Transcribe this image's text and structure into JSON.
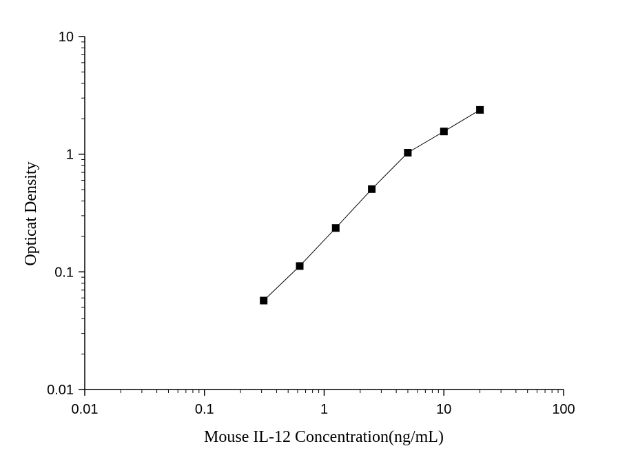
{
  "chart_data": {
    "type": "scatter",
    "xlabel": "Mouse IL-12 Concentration(ng/mL)",
    "ylabel": "Opticat Density",
    "x_scale": "log",
    "y_scale": "log",
    "xlim": [
      0.01,
      100
    ],
    "ylim": [
      0.01,
      10
    ],
    "x_ticks": [
      "0.01",
      "0.1",
      "1",
      "10",
      "100"
    ],
    "y_ticks": [
      "0.01",
      "0.1",
      "1",
      "10"
    ],
    "grid": false,
    "series": [
      {
        "x": [
          0.3125,
          0.625,
          1.25,
          2.5,
          5,
          10,
          20
        ],
        "y": [
          0.057,
          0.112,
          0.236,
          0.505,
          1.03,
          1.56,
          2.38
        ],
        "marker": "square",
        "line": true,
        "color": "#000000"
      }
    ]
  }
}
